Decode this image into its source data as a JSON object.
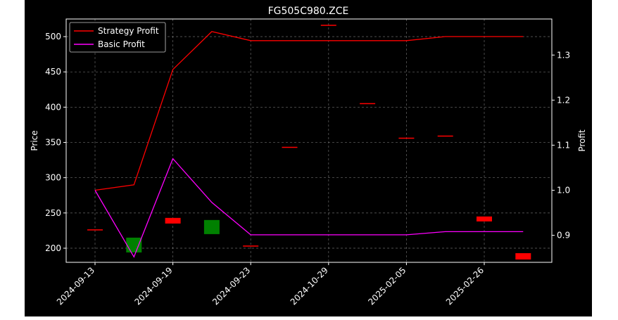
{
  "chart_data": {
    "type": "candlestick+line",
    "title": "FG505C980.ZCE",
    "ylabel_left": "Price",
    "ylabel_right": "Profit",
    "xlabel": "",
    "ylim_left": [
      180,
      525
    ],
    "ylim_right": [
      0.84,
      1.38
    ],
    "left_ticks": [
      200,
      250,
      300,
      350,
      400,
      450,
      500
    ],
    "right_ticks": [
      0.9,
      1.0,
      1.1,
      1.2,
      1.3
    ],
    "x_tick_labels": [
      "2024-09-13",
      "2024-09-19",
      "2024-09-23",
      "2024-10-29",
      "2025-02-05",
      "2025-02-26"
    ],
    "x_tick_positions": [
      0,
      2,
      4,
      6,
      8,
      10
    ],
    "grid": true,
    "legend_placement": "top-left",
    "candles": [
      {
        "i": 0,
        "open": 226,
        "close": 226,
        "color": "red"
      },
      {
        "i": 1,
        "open": 215,
        "close": 194,
        "color": "green"
      },
      {
        "i": 2,
        "open": 243,
        "close": 235,
        "color": "red"
      },
      {
        "i": 3,
        "open": 240,
        "close": 220,
        "color": "green"
      },
      {
        "i": 4,
        "open": 203,
        "close": 203,
        "color": "red"
      },
      {
        "i": 5,
        "open": 343,
        "close": 343,
        "color": "red"
      },
      {
        "i": 6,
        "open": 516,
        "close": 516,
        "color": "red"
      },
      {
        "i": 7,
        "open": 405,
        "close": 405,
        "color": "red"
      },
      {
        "i": 8,
        "open": 356,
        "close": 356,
        "color": "red"
      },
      {
        "i": 9,
        "open": 359,
        "close": 359,
        "color": "red"
      },
      {
        "i": 10,
        "open": 245,
        "close": 238,
        "color": "red"
      },
      {
        "i": 11,
        "open": 193,
        "close": 184,
        "color": "red"
      }
    ],
    "series": [
      {
        "name": "Strategy Profit",
        "color": "#ff0000",
        "x": [
          0,
          1,
          2,
          3,
          4,
          5,
          6,
          7,
          8,
          9,
          10,
          11
        ],
        "values": [
          1.0,
          1.012,
          1.268,
          1.352,
          1.332,
          1.332,
          1.332,
          1.332,
          1.332,
          1.341,
          1.341,
          1.341
        ]
      },
      {
        "name": "Basic Profit",
        "color": "#ff00ff",
        "x": [
          0,
          1,
          2,
          3,
          4,
          5,
          6,
          7,
          8,
          9,
          10,
          11
        ],
        "values": [
          1.0,
          0.852,
          1.07,
          0.973,
          0.901,
          0.901,
          0.901,
          0.901,
          0.901,
          0.908,
          0.908,
          0.908
        ]
      }
    ],
    "colors": {
      "background": "#000000",
      "up": "#008000",
      "down": "#ff0000",
      "grid": "#808080"
    }
  }
}
